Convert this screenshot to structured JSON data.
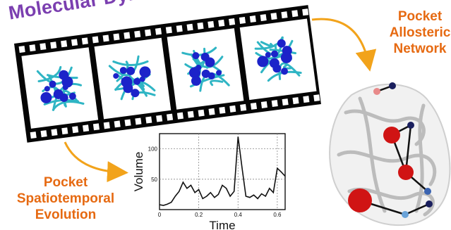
{
  "header": {
    "title": "Molecular Dynamics"
  },
  "labels": {
    "allosteric_line1": "Pocket",
    "allosteric_line2": "Allosteric",
    "allosteric_line3": "Network",
    "spatio_line1": "Pocket",
    "spatio_line2": "Spatiotemporal",
    "spatio_line3": "Evolution"
  },
  "film_strip": {
    "frame_count": 4
  },
  "colors": {
    "title": "#7b3fb0",
    "label": "#e66a12",
    "arrow": "#f2a31b",
    "ribbon": "#2fb5c4",
    "pocket": "#1c23c9",
    "network_node": "#e01515"
  },
  "chart_data": {
    "type": "line",
    "xlabel": "Time",
    "ylabel": "Volume",
    "xticks": [
      "0",
      "0.2",
      "0.4",
      "0.6"
    ],
    "yticks": [
      "50",
      "100"
    ],
    "xlim": [
      0,
      0.64
    ],
    "ylim": [
      0,
      125
    ],
    "grid": true,
    "x": [
      0.0,
      0.02,
      0.04,
      0.06,
      0.08,
      0.1,
      0.12,
      0.14,
      0.16,
      0.18,
      0.2,
      0.22,
      0.24,
      0.26,
      0.28,
      0.3,
      0.32,
      0.34,
      0.36,
      0.38,
      0.4,
      0.42,
      0.44,
      0.46,
      0.48,
      0.5,
      0.52,
      0.54,
      0.56,
      0.58,
      0.6,
      0.62,
      0.64
    ],
    "y": [
      8,
      7,
      9,
      12,
      22,
      30,
      45,
      35,
      40,
      28,
      33,
      18,
      22,
      28,
      20,
      25,
      40,
      35,
      22,
      30,
      120,
      70,
      22,
      20,
      24,
      18,
      26,
      22,
      35,
      28,
      68,
      62,
      55
    ]
  }
}
